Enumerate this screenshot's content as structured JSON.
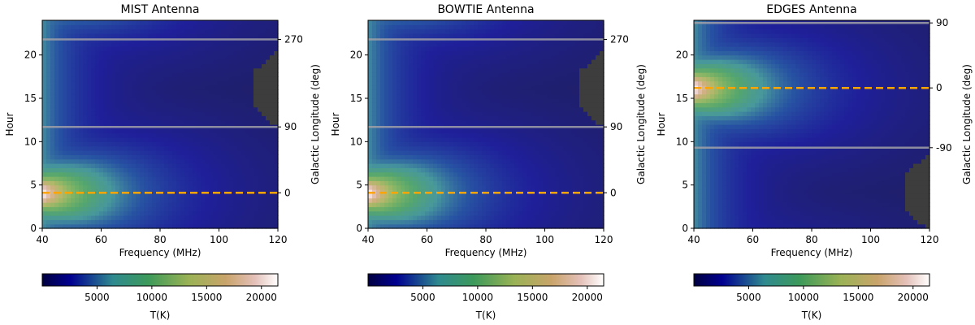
{
  "chart_data": [
    {
      "type": "heatmap",
      "title": "MIST Antenna",
      "xlabel": "Frequency (MHz)",
      "ylabel": "Hour",
      "right_ylabel": "Galactic Longitude (deg)",
      "xlim": [
        40,
        120
      ],
      "ylim": [
        0,
        24
      ],
      "x_ticks": [
        40,
        60,
        80,
        100,
        120
      ],
      "y_ticks": [
        0,
        5,
        10,
        15,
        20
      ],
      "right_ticks": [
        {
          "hour": 21.8,
          "label": "270"
        },
        {
          "hour": 11.7,
          "label": "90"
        },
        {
          "hour": 4.1,
          "label": "0"
        }
      ],
      "gray_lines_hour": [
        21.8,
        11.7
      ],
      "dashed_line_hour": 4.1,
      "peak_hour": 4.1,
      "colorbar": {
        "label": "T(K)",
        "ticks": [
          5000,
          10000,
          15000,
          20000
        ],
        "range": [
          0,
          21500
        ]
      }
    },
    {
      "type": "heatmap",
      "title": "BOWTIE Antenna",
      "xlabel": "Frequency (MHz)",
      "ylabel": "Hour",
      "right_ylabel": "Galactic Longitude (deg)",
      "xlim": [
        40,
        120
      ],
      "ylim": [
        0,
        24
      ],
      "x_ticks": [
        40,
        60,
        80,
        100,
        120
      ],
      "y_ticks": [
        0,
        5,
        10,
        15,
        20
      ],
      "right_ticks": [
        {
          "hour": 21.8,
          "label": "270"
        },
        {
          "hour": 11.7,
          "label": "90"
        },
        {
          "hour": 4.1,
          "label": "0"
        }
      ],
      "gray_lines_hour": [
        21.8,
        11.7
      ],
      "dashed_line_hour": 4.1,
      "peak_hour": 4.1,
      "colorbar": {
        "label": "T(K)",
        "ticks": [
          5000,
          10000,
          15000,
          20000
        ],
        "range": [
          0,
          21500
        ]
      }
    },
    {
      "type": "heatmap",
      "title": "EDGES Antenna",
      "xlabel": "Frequency (MHz)",
      "ylabel": "Hour",
      "right_ylabel": "Galactic Longitude (deg)",
      "xlim": [
        40,
        120
      ],
      "ylim": [
        0,
        24
      ],
      "x_ticks": [
        40,
        60,
        80,
        100,
        120
      ],
      "y_ticks": [
        0,
        5,
        10,
        15,
        20
      ],
      "right_ticks": [
        {
          "hour": 23.7,
          "label": "90"
        },
        {
          "hour": 16.2,
          "label": "0"
        },
        {
          "hour": 9.3,
          "label": "-90"
        }
      ],
      "gray_lines_hour": [
        23.7,
        9.3
      ],
      "dashed_line_hour": 16.2,
      "peak_hour": 16.2,
      "colorbar": {
        "label": "T(K)",
        "ticks": [
          5000,
          10000,
          15000,
          20000
        ],
        "range": [
          0,
          21500
        ]
      }
    }
  ]
}
